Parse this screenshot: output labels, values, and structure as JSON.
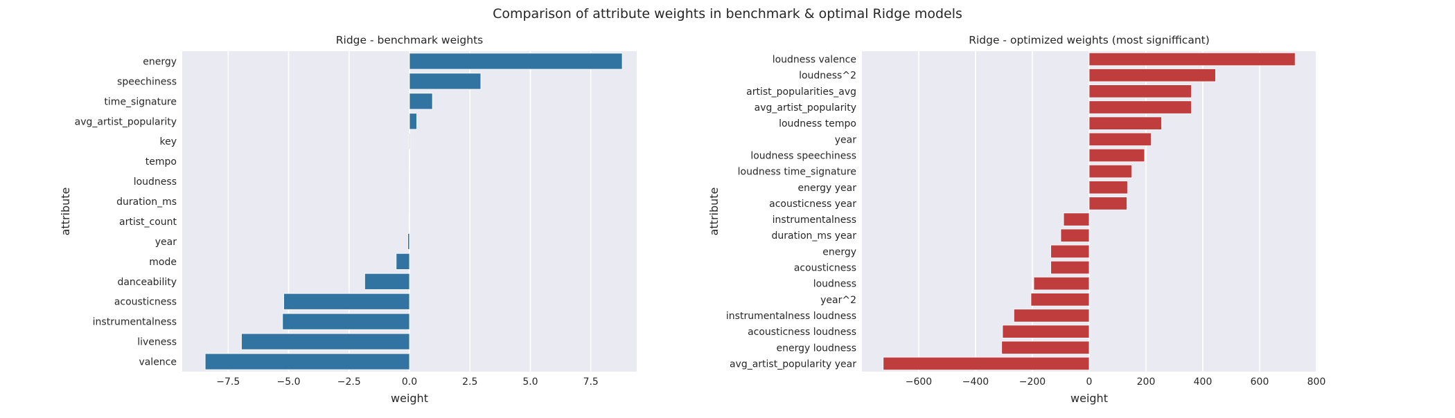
{
  "figure": {
    "suptitle": "Comparison of attribute weights in benchmark & optimal Ridge models",
    "background": "#ffffff",
    "axes_background": "#eaeaf2",
    "grid_color": "#ffffff"
  },
  "chart_data": [
    {
      "type": "bar",
      "orientation": "horizontal",
      "title": "Ridge - benchmark weights",
      "xlabel": "weight",
      "ylabel": "attribute",
      "color": "#3274a1",
      "xlim": [
        -9.4,
        9.4
      ],
      "xticks": [
        -7.5,
        -5.0,
        -2.5,
        0.0,
        2.5,
        5.0,
        7.5
      ],
      "xtick_labels": [
        "−7.5",
        "−5.0",
        "−2.5",
        "0.0",
        "2.5",
        "5.0",
        "7.5"
      ],
      "grid": true,
      "categories": [
        "energy",
        "speechiness",
        "time_signature",
        "avg_artist_popularity",
        "key",
        "tempo",
        "loudness",
        "duration_ms",
        "artist_count",
        "year",
        "mode",
        "danceability",
        "acousticness",
        "instrumentalness",
        "liveness",
        "valence"
      ],
      "values": [
        8.8,
        2.95,
        0.95,
        0.3,
        0.03,
        0.01,
        0.0,
        -0.01,
        -0.02,
        -0.07,
        -0.55,
        -1.85,
        -5.2,
        -5.25,
        -6.95,
        -8.45
      ]
    },
    {
      "type": "bar",
      "orientation": "horizontal",
      "title": "Ridge - optimized weights (most signifficant)",
      "xlabel": "weight",
      "ylabel": "attribute",
      "color": "#c03d3e",
      "xlim": [
        -800,
        800
      ],
      "xticks": [
        -600,
        -400,
        -200,
        0,
        200,
        400,
        600,
        800
      ],
      "xtick_labels": [
        "−600",
        "−400",
        "−200",
        "0",
        "200",
        "400",
        "600",
        "800"
      ],
      "grid": true,
      "categories": [
        "loudness valence",
        "loudness^2",
        "artist_popularities_avg",
        "avg_artist_popularity",
        "loudness tempo",
        "year",
        "loudness speechiness",
        "loudness time_signature",
        "energy year",
        "acousticness year",
        "instrumentalness",
        "duration_ms year",
        "energy",
        "acousticness",
        "loudness",
        "year^2",
        "instrumentalness loudness",
        "acousticness loudness",
        "energy loudness",
        "avg_artist_popularity year"
      ],
      "values": [
        725,
        445,
        360,
        360,
        255,
        218,
        195,
        150,
        135,
        133,
        -90,
        -100,
        -135,
        -135,
        -195,
        -205,
        -265,
        -305,
        -308,
        -725
      ]
    }
  ]
}
